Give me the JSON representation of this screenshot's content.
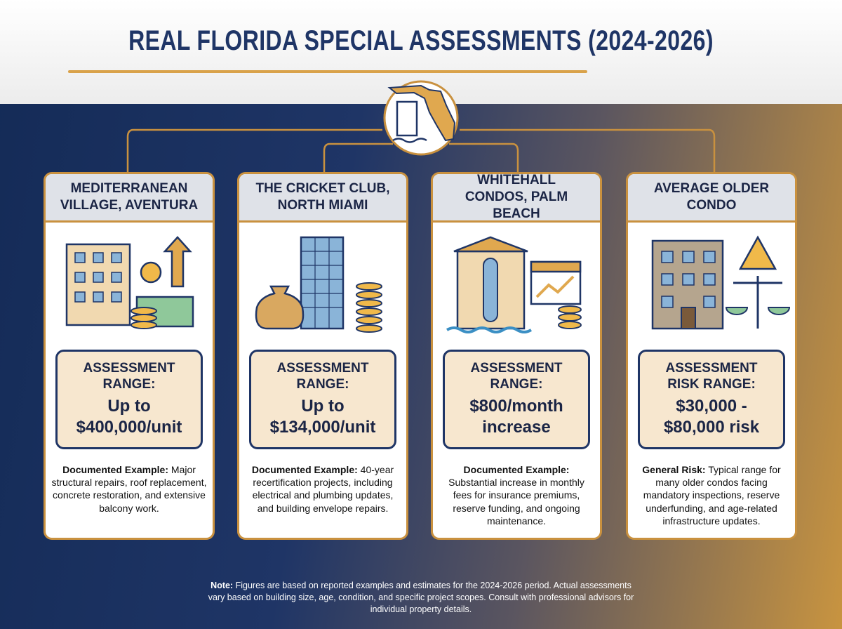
{
  "header": {
    "title": "REAL FLORIDA SPECIAL ASSESSMENTS (2024-2026)"
  },
  "cards": [
    {
      "name": "MEDITERRANEAN VILLAGE, AVENTURA",
      "range_label": "ASSESSMENT RANGE:",
      "range_value": "Up to $400,000/unit",
      "example_label": "Documented Example:",
      "example_text": "Major structural repairs, roof replacement, concrete restoration, and extensive balcony work."
    },
    {
      "name": "THE CRICKET CLUB, NORTH MIAMI",
      "range_label": "ASSESSMENT RANGE:",
      "range_value": "Up to $134,000/unit",
      "example_label": "Documented Example:",
      "example_text": "40-year recertification projects, including electrical and plumbing updates, and building envelope repairs."
    },
    {
      "name": "WHITEHALL CONDOS, PALM BEACH",
      "range_label": "ASSESSMENT RANGE:",
      "range_value": "$800/month increase",
      "example_label": "Documented Example:",
      "example_text": "Substantial increase in monthly fees for insurance premiums, reserve funding, and ongoing maintenance."
    },
    {
      "name": "AVERAGE OLDER CONDO",
      "range_label": "ASSESSMENT RISK RANGE:",
      "range_value": "$30,000 - $80,000 risk",
      "example_label": "General Risk:",
      "example_text": "Typical range for many older condos facing mandatory inspections, reserve underfunding, and age-related infrastructure updates."
    }
  ],
  "note": {
    "label": "Note:",
    "text": "Figures are based on reported examples and estimates for the 2024-2026 period. Actual assessments vary based on building size, age, condition, and specific project scopes. Consult with professional advisors for individual property details."
  }
}
